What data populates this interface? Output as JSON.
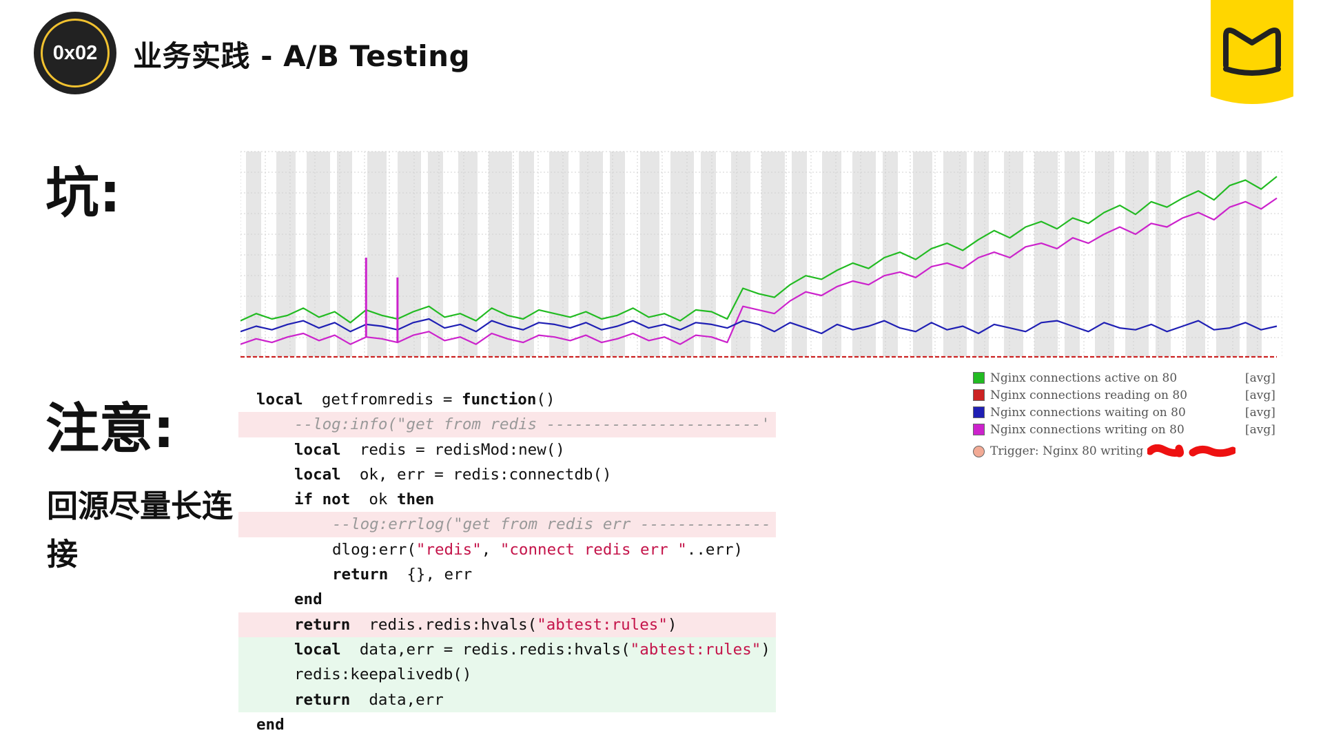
{
  "header": {
    "badge": "0x02",
    "title": "业务实践 - A/B Testing"
  },
  "left": {
    "pit_heading": "坑:",
    "note_heading": "注意:",
    "note_text": "回源尽量长连接"
  },
  "chart_data": {
    "type": "line",
    "title": "",
    "xlabel": "",
    "ylabel": "",
    "series": [
      {
        "name": "Nginx connections active on 80",
        "agg": "[avg]",
        "color": "#22bb22",
        "values": [
          20,
          24,
          21,
          23,
          27,
          22,
          25,
          19,
          26,
          23,
          21,
          25,
          28,
          22,
          24,
          20,
          27,
          23,
          21,
          26,
          24,
          22,
          25,
          21,
          23,
          27,
          22,
          24,
          20,
          26,
          25,
          21,
          38,
          35,
          33,
          40,
          45,
          43,
          48,
          52,
          49,
          55,
          58,
          54,
          60,
          63,
          59,
          65,
          70,
          66,
          72,
          75,
          71,
          77,
          74,
          80,
          84,
          79,
          86,
          83,
          88,
          92,
          87,
          95,
          98,
          93,
          100
        ]
      },
      {
        "name": "Nginx connections reading on 80",
        "agg": "[avg]",
        "color": "#cc2222",
        "values": [
          0,
          0,
          0,
          0,
          0,
          0,
          0,
          0,
          0,
          0,
          0,
          0,
          0,
          0,
          0,
          0,
          0,
          0,
          0,
          0,
          0,
          0,
          0,
          0,
          0,
          0,
          0,
          0,
          0,
          0,
          0,
          0,
          0,
          0,
          0,
          0,
          0,
          0,
          0,
          0,
          0,
          0,
          0,
          0,
          0,
          0,
          0,
          0,
          0,
          0,
          0,
          0,
          0,
          0,
          0,
          0,
          0,
          0,
          0,
          0,
          0,
          0,
          0,
          0,
          0,
          0,
          0
        ]
      },
      {
        "name": "Nginx connections waiting on 80",
        "agg": "[avg]",
        "color": "#1f1fb4",
        "values": [
          14,
          17,
          15,
          18,
          20,
          16,
          19,
          14,
          18,
          17,
          15,
          19,
          21,
          16,
          18,
          14,
          20,
          17,
          15,
          19,
          18,
          16,
          19,
          15,
          17,
          20,
          16,
          18,
          15,
          19,
          18,
          16,
          20,
          18,
          14,
          19,
          16,
          13,
          18,
          15,
          17,
          20,
          16,
          14,
          19,
          15,
          17,
          13,
          18,
          16,
          14,
          19,
          20,
          17,
          14,
          19,
          16,
          15,
          18,
          14,
          17,
          20,
          15,
          16,
          19,
          15,
          17
        ]
      },
      {
        "name": "Nginx connections writing on 80",
        "agg": "[avg]",
        "color": "#cc22cc",
        "values": [
          7,
          10,
          8,
          11,
          13,
          9,
          12,
          7,
          11,
          10,
          8,
          12,
          14,
          9,
          11,
          7,
          13,
          10,
          8,
          12,
          11,
          9,
          12,
          8,
          10,
          13,
          9,
          11,
          7,
          12,
          11,
          8,
          28,
          26,
          24,
          31,
          36,
          34,
          39,
          42,
          40,
          45,
          47,
          44,
          50,
          52,
          49,
          55,
          58,
          55,
          61,
          63,
          60,
          66,
          63,
          68,
          72,
          68,
          74,
          72,
          77,
          80,
          76,
          83,
          86,
          82,
          88
        ]
      }
    ],
    "spikes": [
      {
        "index": 8,
        "value": 55
      },
      {
        "index": 10,
        "value": 44
      }
    ],
    "ylim": [
      0,
      110
    ],
    "grid": true,
    "band_fill": "#e6e6e6",
    "trigger_label": "Trigger:  Nginx 80 writing",
    "trigger_color": "#f2aa95",
    "redaction_color": "#ee1111",
    "legend_placement": "bottom-right"
  },
  "code": {
    "lines": [
      {
        "state": "normal",
        "indent": 0,
        "tokens": [
          [
            "kw",
            "local"
          ],
          [
            "",
            "  getfromredis = "
          ],
          [
            "kw",
            "function"
          ],
          [
            "",
            "()"
          ]
        ]
      },
      {
        "state": "del",
        "indent": 1,
        "tokens": [
          [
            "cmt",
            "--log:info(\"get from redis -----------------------'"
          ]
        ]
      },
      {
        "state": "normal",
        "indent": 1,
        "tokens": [
          [
            "kw",
            "local"
          ],
          [
            "",
            "  redis = redisMod:new()"
          ]
        ]
      },
      {
        "state": "normal",
        "indent": 1,
        "tokens": [
          [
            "kw",
            "local"
          ],
          [
            "",
            "  ok, err = redis:connectdb()"
          ]
        ]
      },
      {
        "state": "normal",
        "indent": 1,
        "tokens": [
          [
            "kw",
            "if not"
          ],
          [
            "",
            "  ok "
          ],
          [
            "kw",
            "then"
          ]
        ]
      },
      {
        "state": "del",
        "indent": 2,
        "tokens": [
          [
            "cmt",
            "--log:errlog(\"get from redis err --------------"
          ]
        ]
      },
      {
        "state": "normal",
        "indent": 2,
        "tokens": [
          [
            "",
            "dlog:err("
          ],
          [
            "str",
            "\"redis\""
          ],
          [
            "",
            ", "
          ],
          [
            "str",
            "\"connect redis err \""
          ],
          [
            "",
            "..err)"
          ]
        ]
      },
      {
        "state": "normal",
        "indent": 2,
        "tokens": [
          [
            "kw",
            "return"
          ],
          [
            "",
            "  {}, err"
          ]
        ]
      },
      {
        "state": "normal",
        "indent": 1,
        "tokens": [
          [
            "kw",
            "end"
          ]
        ]
      },
      {
        "state": "del",
        "indent": 1,
        "tokens": [
          [
            "kw",
            "return"
          ],
          [
            "",
            "  redis.redis:hvals("
          ],
          [
            "str",
            "\"abtest:rules\""
          ],
          [
            "",
            ")"
          ]
        ]
      },
      {
        "state": "add",
        "indent": 1,
        "tokens": [
          [
            "kw",
            "local"
          ],
          [
            "",
            "  data,err = redis.redis:hvals("
          ],
          [
            "str",
            "\"abtest:rules\""
          ],
          [
            "",
            ")"
          ]
        ]
      },
      {
        "state": "add",
        "indent": 1,
        "tokens": [
          [
            "",
            "redis:keepalivedb()"
          ]
        ]
      },
      {
        "state": "add",
        "indent": 1,
        "tokens": [
          [
            "kw",
            "return"
          ],
          [
            "",
            "  data,err"
          ]
        ]
      },
      {
        "state": "normal",
        "indent": 0,
        "tokens": [
          [
            "kw",
            "end"
          ]
        ]
      }
    ]
  },
  "colors": {
    "badge_ring": "#f2c230",
    "logo_yellow": "#ffd600",
    "diff_removed": "#fbe6e8",
    "diff_added": "#e8f8ec",
    "string": "#c4144a"
  }
}
